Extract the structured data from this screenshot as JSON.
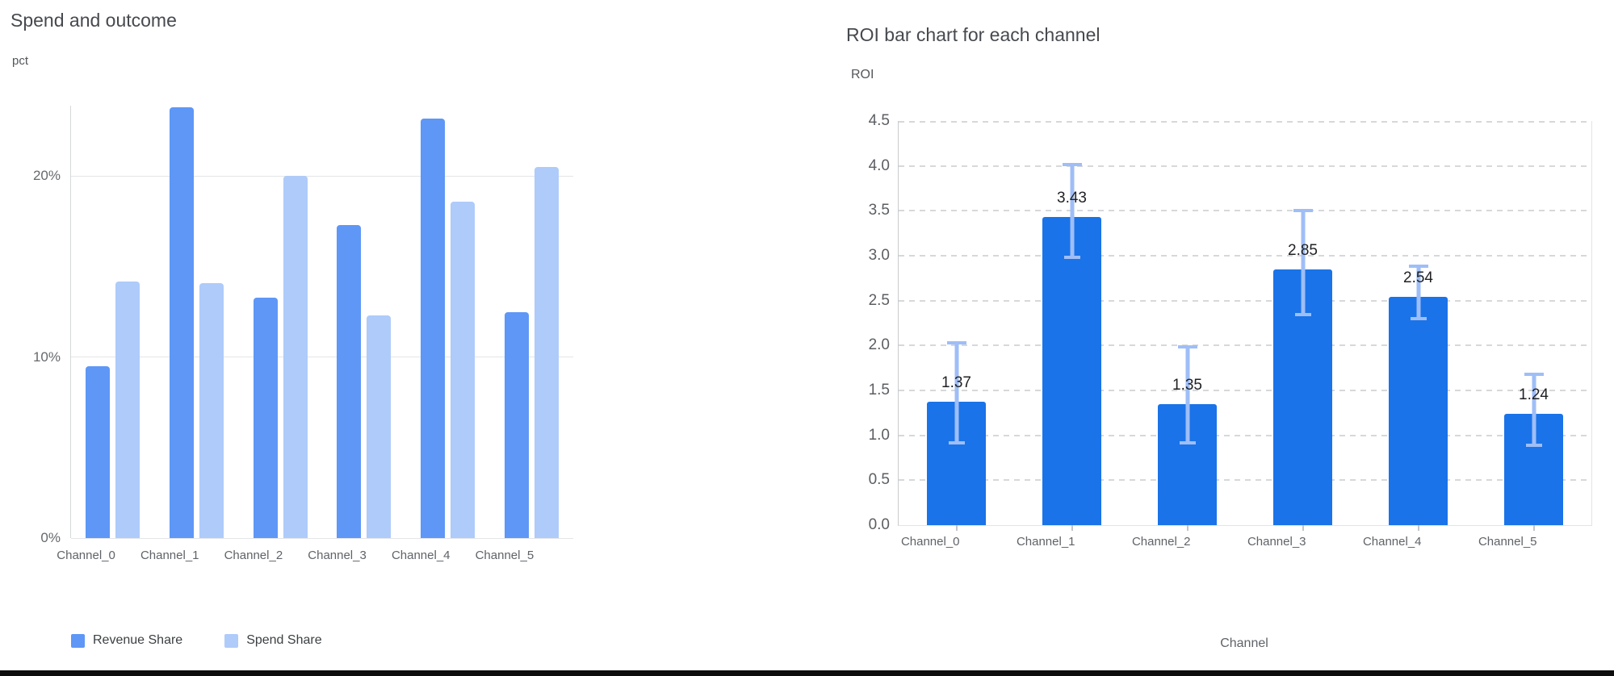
{
  "page": {
    "background": "#ffffff",
    "bottom_rule_color": "#0d0d0d"
  },
  "chart_data": [
    {
      "type": "bar",
      "title": "Spend and outcome",
      "ylabel": "pct",
      "xlabel": "",
      "categories": [
        "Channel_0",
        "Channel_1",
        "Channel_2",
        "Channel_3",
        "Channel_4",
        "Channel_5"
      ],
      "series": [
        {
          "name": "Revenue Share",
          "color": "#5e97f6",
          "values": [
            9.5,
            23.8,
            13.3,
            17.3,
            23.2,
            12.5
          ]
        },
        {
          "name": "Spend Share",
          "color": "#aecbfa",
          "values": [
            14.2,
            14.1,
            20.0,
            12.3,
            18.6,
            20.5
          ]
        }
      ],
      "y_ticks": [
        {
          "value": 0,
          "label": "0%"
        },
        {
          "value": 10,
          "label": "10%"
        },
        {
          "value": 20,
          "label": "20%"
        }
      ],
      "ylim": [
        0,
        23.9
      ],
      "grid": "solid",
      "legend_position": "bottom"
    },
    {
      "type": "bar",
      "title": "ROI bar chart for each channel",
      "ylabel": "ROI",
      "xlabel": "Channel",
      "categories": [
        "Channel_0",
        "Channel_1",
        "Channel_2",
        "Channel_3",
        "Channel_4",
        "Channel_5"
      ],
      "values": [
        1.37,
        3.43,
        1.35,
        2.85,
        2.54,
        1.24
      ],
      "bar_labels": [
        "1.37",
        "3.43",
        "1.35",
        "2.85",
        "2.54",
        "1.24"
      ],
      "error_low": [
        0.9,
        2.96,
        0.9,
        2.33,
        2.28,
        0.87
      ],
      "error_high": [
        2.05,
        4.03,
        2.0,
        3.52,
        2.9,
        1.7
      ],
      "bar_color": "#1a73e8",
      "error_color": "#9fbef7",
      "y_ticks": [
        {
          "value": 0.0,
          "label": "0.0"
        },
        {
          "value": 0.5,
          "label": "0.5"
        },
        {
          "value": 1.0,
          "label": "1.0"
        },
        {
          "value": 1.5,
          "label": "1.5"
        },
        {
          "value": 2.0,
          "label": "2.0"
        },
        {
          "value": 2.5,
          "label": "2.5"
        },
        {
          "value": 3.0,
          "label": "3.0"
        },
        {
          "value": 3.5,
          "label": "3.5"
        },
        {
          "value": 4.0,
          "label": "4.0"
        },
        {
          "value": 4.5,
          "label": "4.5"
        }
      ],
      "ylim": [
        0,
        4.5
      ],
      "grid": "dashed",
      "legend_position": "none"
    }
  ]
}
